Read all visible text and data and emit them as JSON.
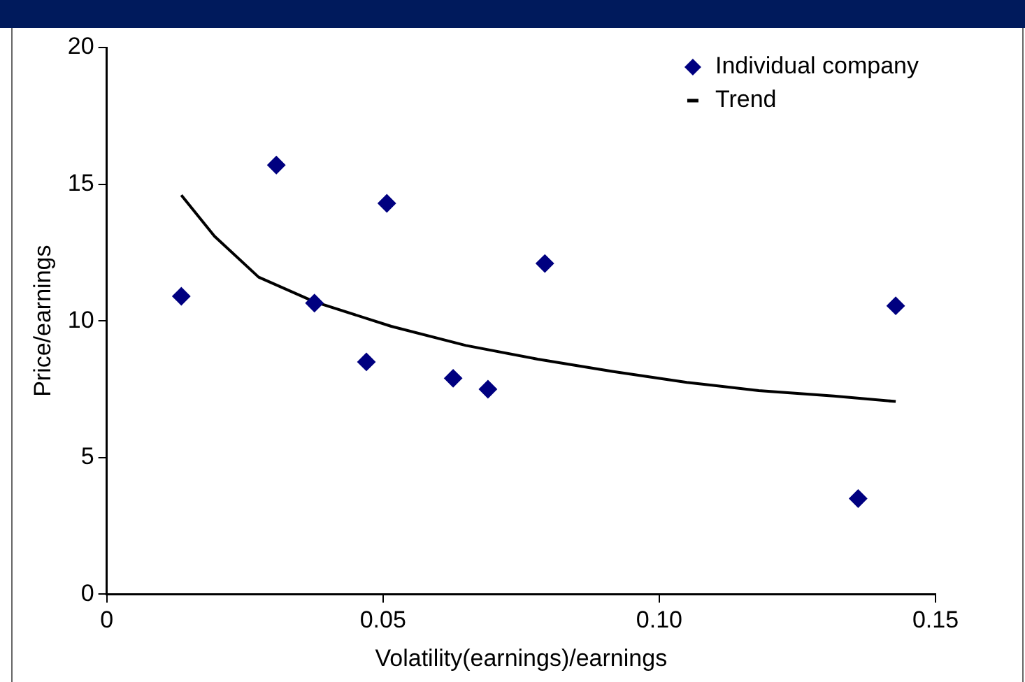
{
  "chart_data": {
    "type": "scatter",
    "xlabel": "Volatility(earnings)/earnings",
    "ylabel": "Price/earnings",
    "xlim": [
      0,
      0.15
    ],
    "xticks": [
      0,
      0.05,
      {
        "value": 0.1,
        "label": "0.10"
      },
      0.15
    ],
    "ylim": [
      0,
      20
    ],
    "yticks": [
      0,
      5,
      10,
      15,
      20
    ],
    "grid": false,
    "legend": "top right",
    "marker": "diamond",
    "series": [
      {
        "name": "Individual company",
        "color": "#000080",
        "x": [
          0.0135,
          0.0307,
          0.0376,
          0.047,
          0.0507,
          0.0627,
          0.069,
          0.0793,
          0.136,
          0.1428
        ],
        "values": [
          10.9,
          15.7,
          10.65,
          8.5,
          14.3,
          7.9,
          7.5,
          12.1,
          3.5,
          10.55
        ]
      },
      {
        "name": "Trend",
        "type": "line",
        "color": "#000000",
        "marker": "none",
        "x": [
          0.0135,
          0.0195,
          0.0275,
          0.0376,
          0.0515,
          0.065,
          0.078,
          0.0915,
          0.105,
          0.118,
          0.1316,
          0.1428
        ],
        "values": [
          14.6,
          13.1,
          11.6,
          10.7,
          9.8,
          9.1,
          8.6,
          8.15,
          7.75,
          7.45,
          7.25,
          7.05
        ]
      }
    ]
  }
}
